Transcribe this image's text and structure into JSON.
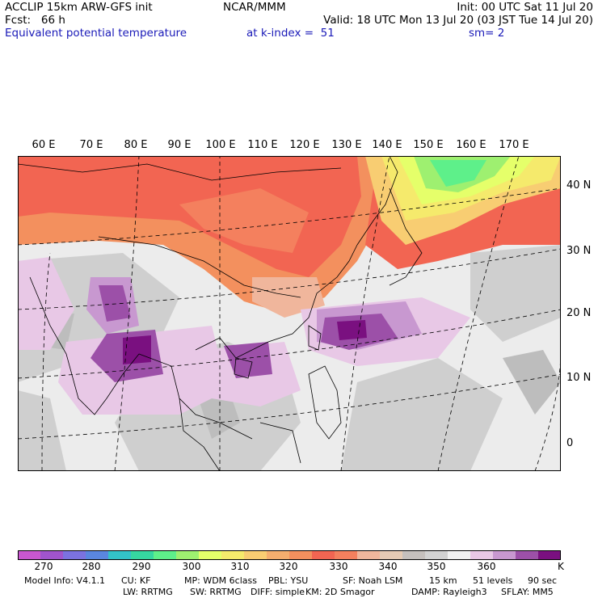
{
  "header": {
    "title": "ACCLIP 15km ARW-GFS init",
    "fcst": "Fcst:   66 h",
    "field": "Equivalent potential temperature",
    "center": "NCAR/MMM",
    "init": "Init: 00 UTC Sat 11 Jul 20",
    "valid": "Valid: 18 UTC Mon 13 Jul 20 (03 JST Tue 14 Jul 20)",
    "level": "at k-index =  51",
    "smoothing": "sm= 2"
  },
  "map": {
    "lon_labels": [
      "60 E",
      "70 E",
      "80 E",
      "90 E",
      "100 E",
      "110 E",
      "120 E",
      "130 E",
      "140 E",
      "150 E",
      "160 E",
      "170 E"
    ],
    "lat_labels": [
      "40 N",
      "30 N",
      "20 N",
      "10 N",
      "0"
    ]
  },
  "colorbar": {
    "colors": [
      "#c957d0",
      "#a054cd",
      "#7b72e0",
      "#5a86e0",
      "#33c2c8",
      "#36d7a0",
      "#5ef08a",
      "#9ef070",
      "#e5ff6a",
      "#f5ea6c",
      "#f8cd72",
      "#f4ae6e",
      "#f3905e",
      "#f26552",
      "#f4805e",
      "#f0b69c",
      "#e6cbb4",
      "#c5c0bd",
      "#d2d2d2",
      "#f2f2f2",
      "#e8c8e6",
      "#c898d0",
      "#9c50a8",
      "#7a1080"
    ],
    "labels": [
      "270",
      "280",
      "290",
      "300",
      "310",
      "320",
      "330",
      "340",
      "350",
      "360"
    ],
    "unit": "K"
  },
  "footer": {
    "line1": [
      "Model Info: V4.1.1",
      "CU: KF",
      "MP: WDM 6class",
      "PBL: YSU",
      "SF: Noah LSM",
      "15 km",
      "51 levels",
      "90 sec"
    ],
    "line2": [
      "LW: RRTMG",
      "SW: RRTMG",
      "DIFF: simple",
      "KM: 2D Smagor",
      "DAMP: Rayleigh3",
      "SFLAY: MM5"
    ]
  }
}
